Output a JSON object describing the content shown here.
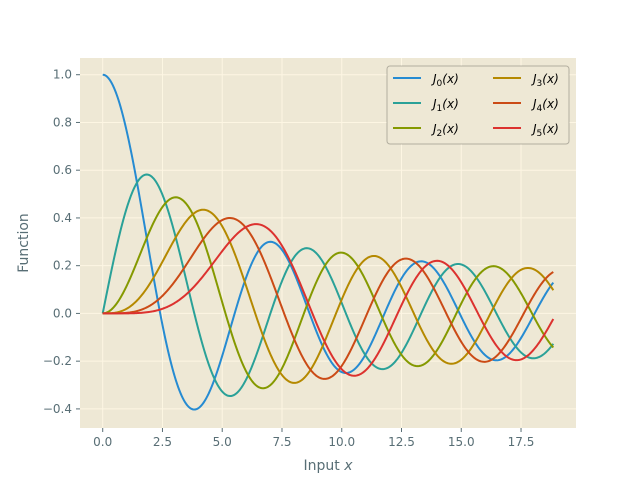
{
  "chart_data": {
    "type": "line",
    "title": "",
    "xlabel": "Input",
    "xlabel_var": "x",
    "ylabel": "Function",
    "xlim": [
      -0.95,
      19.8
    ],
    "ylim": [
      -0.48,
      1.07
    ],
    "x_range": [
      0,
      18.85
    ],
    "x_ticks": [
      "0.0",
      "2.5",
      "5.0",
      "7.5",
      "10.0",
      "12.5",
      "15.0",
      "17.5"
    ],
    "y_ticks": [
      "−0.4",
      "−0.2",
      "0.0",
      "0.2",
      "0.4",
      "0.6",
      "0.8",
      "1.0"
    ],
    "grid": true,
    "background": "#eee8d5",
    "grid_color": "#fdf6e3",
    "legend_position": "top-right",
    "legend_columns": 2,
    "series": [
      {
        "name": "J0(x)",
        "order": 0,
        "color": "#268bd2"
      },
      {
        "name": "J1(x)",
        "order": 1,
        "color": "#2aa198"
      },
      {
        "name": "J2(x)",
        "order": 2,
        "color": "#859900"
      },
      {
        "name": "J3(x)",
        "order": 3,
        "color": "#b58900"
      },
      {
        "name": "J4(x)",
        "order": 4,
        "color": "#cb4b16"
      },
      {
        "name": "J5(x)",
        "order": 5,
        "color": "#dc322f"
      }
    ],
    "legend": [
      {
        "fn": "J",
        "sub": "0",
        "arg": "(x)"
      },
      {
        "fn": "J",
        "sub": "1",
        "arg": "(x)"
      },
      {
        "fn": "J",
        "sub": "2",
        "arg": "(x)"
      },
      {
        "fn": "J",
        "sub": "3",
        "arg": "(x)"
      },
      {
        "fn": "J",
        "sub": "4",
        "arg": "(x)"
      },
      {
        "fn": "J",
        "sub": "5",
        "arg": "(x)"
      }
    ]
  }
}
